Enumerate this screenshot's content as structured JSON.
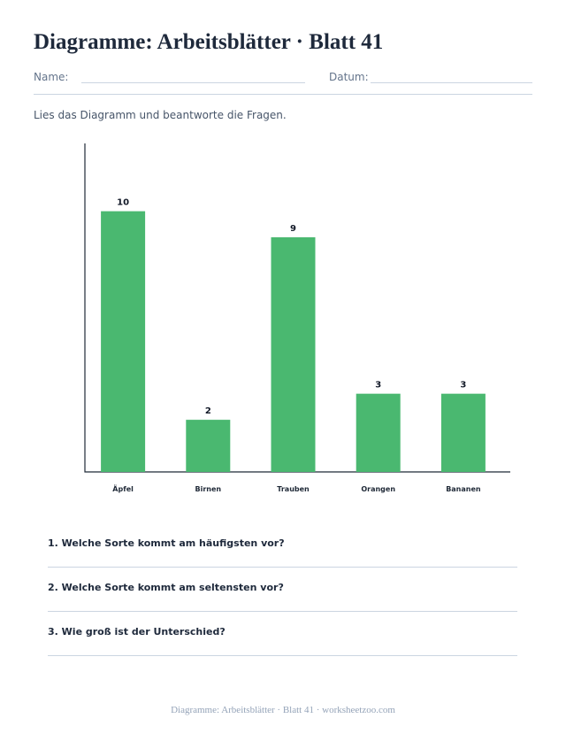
{
  "header": {
    "title": "Diagramme: Arbeitsblätter · Blatt 41",
    "name_label": "Name:",
    "date_label": "Datum:"
  },
  "instructions": "Lies das Diagramm und beantworte die Fragen.",
  "chart_data": {
    "type": "bar",
    "categories": [
      "Äpfel",
      "Birnen",
      "Trauben",
      "Orangen",
      "Bananen"
    ],
    "values": [
      10,
      2,
      9,
      3,
      3
    ],
    "title": "",
    "xlabel": "",
    "ylabel": "",
    "ylim": [
      0,
      12.6
    ],
    "grid": false,
    "colors": {
      "bar": "#4ab870"
    }
  },
  "questions": [
    "1. Welche Sorte kommt am häufigsten vor?",
    "2. Welche Sorte kommt am seltensten vor?",
    "3. Wie groß ist der Unterschied?"
  ],
  "footer": "Diagramme: Arbeitsblätter · Blatt 41 · worksheetzoo.com"
}
